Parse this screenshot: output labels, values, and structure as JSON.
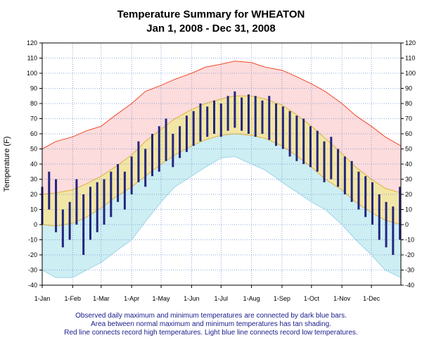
{
  "chart_data": {
    "type": "area",
    "title": "Temperature Summary for WHEATON",
    "subtitle": "Jan  1, 2008 - Dec 31, 2008",
    "ylabel": "Temperature (F)",
    "xlabel": "",
    "ylim": [
      -40,
      120
    ],
    "yticks": [
      -40,
      -30,
      -20,
      -10,
      0,
      10,
      20,
      30,
      40,
      50,
      60,
      70,
      80,
      90,
      100,
      110,
      120
    ],
    "xlim": [
      "2008-01-01",
      "2008-12-31"
    ],
    "xtick_labels": [
      "1-Jan",
      "1-Feb",
      "1-Mar",
      "1-Apr",
      "1-May",
      "1-Jun",
      "1-Jul",
      "1-Aug",
      "1-Sep",
      "1-Oct",
      "1-Nov",
      "1-Dec"
    ],
    "xtick_dates": [
      "2008-01-01",
      "2008-02-01",
      "2008-03-01",
      "2008-04-01",
      "2008-05-01",
      "2008-06-01",
      "2008-07-01",
      "2008-08-01",
      "2008-09-01",
      "2008-10-01",
      "2008-11-01",
      "2008-12-01"
    ],
    "grid": true,
    "legend": "none",
    "notes": [
      "Observed daily maximum and minimum temperatures are connected by dark blue bars.",
      "Area between normal maximum and minimum temperatures has tan shading.",
      "Red line connects record high temperatures. Light blue line connects record low temperatures."
    ],
    "series": {
      "record_high": {
        "x": [
          "2008-01-01",
          "2008-01-15",
          "2008-02-01",
          "2008-02-15",
          "2008-03-01",
          "2008-03-15",
          "2008-04-01",
          "2008-04-15",
          "2008-05-01",
          "2008-05-15",
          "2008-06-01",
          "2008-06-15",
          "2008-07-01",
          "2008-07-15",
          "2008-08-01",
          "2008-08-15",
          "2008-09-01",
          "2008-09-15",
          "2008-10-01",
          "2008-10-15",
          "2008-11-01",
          "2008-11-15",
          "2008-12-01",
          "2008-12-15",
          "2008-12-31"
        ],
        "y": [
          50,
          55,
          58,
          62,
          65,
          72,
          80,
          88,
          92,
          96,
          100,
          104,
          106,
          108,
          107,
          104,
          102,
          98,
          93,
          88,
          80,
          72,
          65,
          58,
          52
        ]
      },
      "normal_high": {
        "x": [
          "2008-01-01",
          "2008-01-15",
          "2008-02-01",
          "2008-02-15",
          "2008-03-01",
          "2008-03-15",
          "2008-04-01",
          "2008-04-15",
          "2008-05-01",
          "2008-05-15",
          "2008-06-01",
          "2008-06-15",
          "2008-07-01",
          "2008-07-15",
          "2008-08-01",
          "2008-08-15",
          "2008-09-01",
          "2008-09-15",
          "2008-10-01",
          "2008-10-15",
          "2008-11-01",
          "2008-11-15",
          "2008-12-01",
          "2008-12-15",
          "2008-12-31"
        ],
        "y": [
          20,
          21,
          23,
          27,
          32,
          38,
          46,
          55,
          63,
          70,
          76,
          80,
          83,
          85,
          85,
          83,
          79,
          73,
          65,
          57,
          47,
          38,
          30,
          24,
          21
        ]
      },
      "normal_low": {
        "x": [
          "2008-01-01",
          "2008-01-15",
          "2008-02-01",
          "2008-02-15",
          "2008-03-01",
          "2008-03-15",
          "2008-04-01",
          "2008-04-15",
          "2008-05-01",
          "2008-05-15",
          "2008-06-01",
          "2008-06-15",
          "2008-07-01",
          "2008-07-15",
          "2008-08-01",
          "2008-08-15",
          "2008-09-01",
          "2008-09-15",
          "2008-10-01",
          "2008-10-15",
          "2008-11-01",
          "2008-11-15",
          "2008-12-01",
          "2008-12-15",
          "2008-12-31"
        ],
        "y": [
          0,
          -1,
          1,
          5,
          11,
          18,
          25,
          32,
          40,
          46,
          52,
          56,
          59,
          60,
          59,
          57,
          52,
          46,
          38,
          30,
          23,
          15,
          8,
          3,
          0
        ]
      },
      "record_low": {
        "x": [
          "2008-01-01",
          "2008-01-15",
          "2008-02-01",
          "2008-02-15",
          "2008-03-01",
          "2008-03-15",
          "2008-04-01",
          "2008-04-15",
          "2008-05-01",
          "2008-05-15",
          "2008-06-01",
          "2008-06-15",
          "2008-07-01",
          "2008-07-15",
          "2008-08-01",
          "2008-08-15",
          "2008-09-01",
          "2008-09-15",
          "2008-10-01",
          "2008-10-15",
          "2008-11-01",
          "2008-11-15",
          "2008-12-01",
          "2008-12-15",
          "2008-12-31"
        ],
        "y": [
          -30,
          -35,
          -35,
          -30,
          -25,
          -18,
          -10,
          2,
          15,
          25,
          32,
          38,
          44,
          45,
          40,
          36,
          28,
          22,
          15,
          10,
          0,
          -10,
          -20,
          -30,
          -35
        ]
      },
      "observed": {
        "x": [
          "2008-01-01",
          "2008-01-08",
          "2008-01-15",
          "2008-01-22",
          "2008-01-29",
          "2008-02-05",
          "2008-02-12",
          "2008-02-19",
          "2008-02-26",
          "2008-03-04",
          "2008-03-11",
          "2008-03-18",
          "2008-03-25",
          "2008-04-01",
          "2008-04-08",
          "2008-04-15",
          "2008-04-22",
          "2008-04-29",
          "2008-05-06",
          "2008-05-13",
          "2008-05-20",
          "2008-05-27",
          "2008-06-03",
          "2008-06-10",
          "2008-06-17",
          "2008-06-24",
          "2008-07-01",
          "2008-07-08",
          "2008-07-15",
          "2008-07-22",
          "2008-07-29",
          "2008-08-05",
          "2008-08-12",
          "2008-08-19",
          "2008-08-26",
          "2008-09-02",
          "2008-09-09",
          "2008-09-16",
          "2008-09-23",
          "2008-09-30",
          "2008-10-07",
          "2008-10-14",
          "2008-10-21",
          "2008-10-28",
          "2008-11-04",
          "2008-11-11",
          "2008-11-18",
          "2008-11-25",
          "2008-12-02",
          "2008-12-09",
          "2008-12-16",
          "2008-12-23",
          "2008-12-30"
        ],
        "high": [
          25,
          35,
          30,
          10,
          15,
          30,
          20,
          25,
          28,
          30,
          35,
          40,
          35,
          45,
          55,
          50,
          60,
          65,
          70,
          60,
          65,
          72,
          75,
          80,
          78,
          82,
          80,
          85,
          88,
          84,
          86,
          85,
          82,
          85,
          80,
          78,
          75,
          72,
          70,
          65,
          62,
          55,
          58,
          50,
          45,
          42,
          35,
          32,
          28,
          20,
          15,
          12,
          25
        ],
        "low": [
          0,
          10,
          -5,
          -15,
          -10,
          0,
          -20,
          -10,
          -5,
          0,
          5,
          15,
          10,
          20,
          28,
          25,
          32,
          35,
          42,
          38,
          44,
          48,
          52,
          55,
          58,
          60,
          58,
          62,
          64,
          62,
          60,
          58,
          60,
          56,
          52,
          50,
          45,
          42,
          40,
          38,
          35,
          28,
          30,
          25,
          20,
          15,
          10,
          5,
          0,
          -10,
          -15,
          -20,
          -10
        ]
      }
    }
  },
  "colors": {
    "record_high_line": "#f04a2a",
    "record_high_fill": "#fcdcdc",
    "normal_fill": "#f2e6a6",
    "normal_line": "#e0b040",
    "record_low_fill": "#cdeef2",
    "record_low_line": "#9fd4ec",
    "observed_bar": "#24247e",
    "grid": "#6f8fd0",
    "note_text": "#1a1a8c"
  }
}
